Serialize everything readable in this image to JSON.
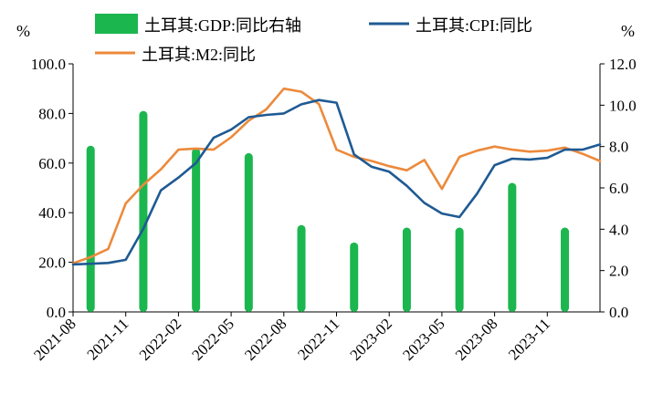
{
  "chart_data": {
    "type": "bar+line",
    "left_unit": "%",
    "right_unit": "%",
    "y_left": {
      "min": 0,
      "max": 100,
      "ticks": [
        "0.0",
        "20.0",
        "40.0",
        "60.0",
        "80.0",
        "100.0"
      ]
    },
    "y_right": {
      "min": 0,
      "max": 12,
      "ticks": [
        "0.0",
        "2.0",
        "4.0",
        "6.0",
        "8.0",
        "10.0",
        "12.0"
      ]
    },
    "x_ticks": [
      "2021-08",
      "2021-11",
      "2022-02",
      "2022-05",
      "2022-08",
      "2022-11",
      "2023-02",
      "2023-05",
      "2023-08",
      "2023-11"
    ],
    "months": [
      "2021-08",
      "2021-09",
      "2021-10",
      "2021-11",
      "2021-12",
      "2022-01",
      "2022-02",
      "2022-03",
      "2022-04",
      "2022-05",
      "2022-06",
      "2022-07",
      "2022-08",
      "2022-09",
      "2022-10",
      "2022-11",
      "2022-12",
      "2023-01",
      "2023-02",
      "2023-03",
      "2023-04",
      "2023-05",
      "2023-06",
      "2023-07",
      "2023-08",
      "2023-09",
      "2023-10",
      "2023-11",
      "2023-12",
      "2024-01",
      "2024-02"
    ],
    "colors": {
      "gdp": "#1cb64f",
      "cpi": "#1f5a93",
      "m2": "#ec8a3c",
      "axis": "#000000"
    },
    "series": [
      {
        "name": "土耳其:GDP:同比右轴",
        "kind": "bar",
        "axis": "left",
        "points": [
          {
            "month": "2021-09",
            "value": 67.0
          },
          {
            "month": "2021-12",
            "value": 81.0
          },
          {
            "month": "2022-03",
            "value": 66.0
          },
          {
            "month": "2022-06",
            "value": 64.0
          },
          {
            "month": "2022-09",
            "value": 35.0
          },
          {
            "month": "2022-12",
            "value": 28.0
          },
          {
            "month": "2023-03",
            "value": 34.0
          },
          {
            "month": "2023-06",
            "value": 34.0
          },
          {
            "month": "2023-09",
            "value": 52.0
          },
          {
            "month": "2023-12",
            "value": 34.0
          }
        ]
      },
      {
        "name": "土耳其:CPI:同比",
        "kind": "line",
        "axis": "right",
        "values": [
          2.3,
          2.33,
          2.37,
          2.52,
          4.02,
          5.88,
          6.5,
          7.2,
          8.42,
          8.82,
          9.42,
          9.53,
          9.6,
          10.04,
          10.25,
          10.12,
          7.62,
          7.02,
          6.78,
          6.1,
          5.27,
          4.76,
          4.59,
          5.72,
          7.1,
          7.41,
          7.37,
          7.45,
          7.85,
          7.85,
          8.1
        ]
      },
      {
        "name": "土耳其:M2:同比",
        "kind": "line",
        "axis": "right",
        "values": [
          2.35,
          2.65,
          3.05,
          5.25,
          6.15,
          6.9,
          7.85,
          7.9,
          7.85,
          8.45,
          9.25,
          9.8,
          10.8,
          10.65,
          10.05,
          7.85,
          7.5,
          7.3,
          7.05,
          6.85,
          7.35,
          5.95,
          7.5,
          7.8,
          8.0,
          7.85,
          7.75,
          7.8,
          7.95,
          7.65,
          7.3
        ]
      }
    ]
  }
}
